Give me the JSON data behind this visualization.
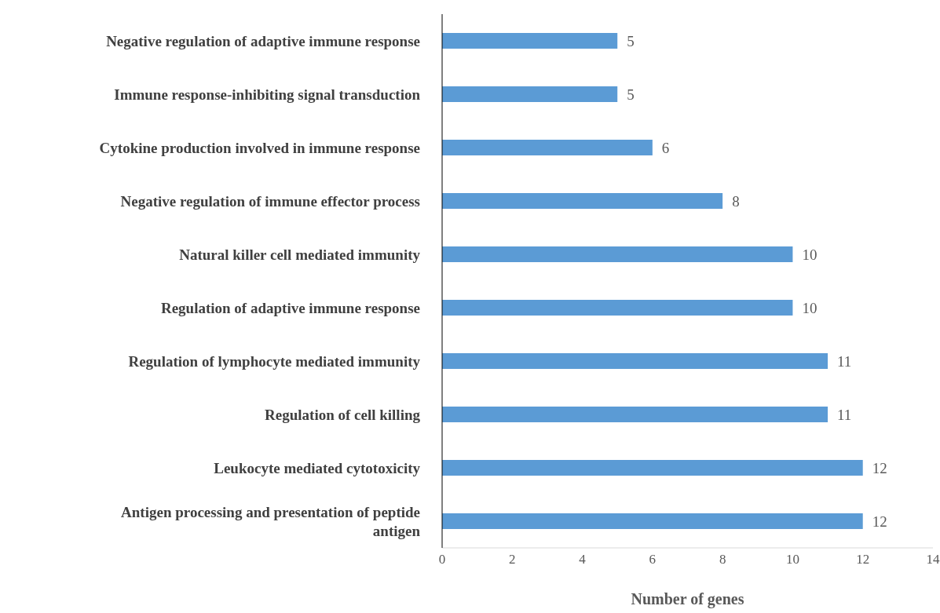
{
  "chart_data": {
    "type": "bar",
    "orientation": "horizontal",
    "xlabel": "Number of genes",
    "categories": [
      "Negative regulation of adaptive immune response",
      "Immune response-inhibiting signal transduction",
      "Cytokine production involved in immune response",
      "Negative regulation of immune effector process",
      "Natural killer cell mediated immunity",
      "Regulation of adaptive immune response",
      "Regulation of lymphocyte mediated immunity",
      "Regulation of cell killing",
      "Leukocyte mediated cytotoxicity",
      "Antigen processing and presentation of peptide antigen"
    ],
    "values": [
      5,
      5,
      6,
      8,
      10,
      10,
      11,
      11,
      12,
      12
    ],
    "color": "#5b9bd5",
    "xlim": [
      0,
      14
    ],
    "xticks": [
      0,
      2,
      4,
      6,
      8,
      10,
      12,
      14
    ],
    "grid": false,
    "legend": false,
    "data_labels": true
  }
}
